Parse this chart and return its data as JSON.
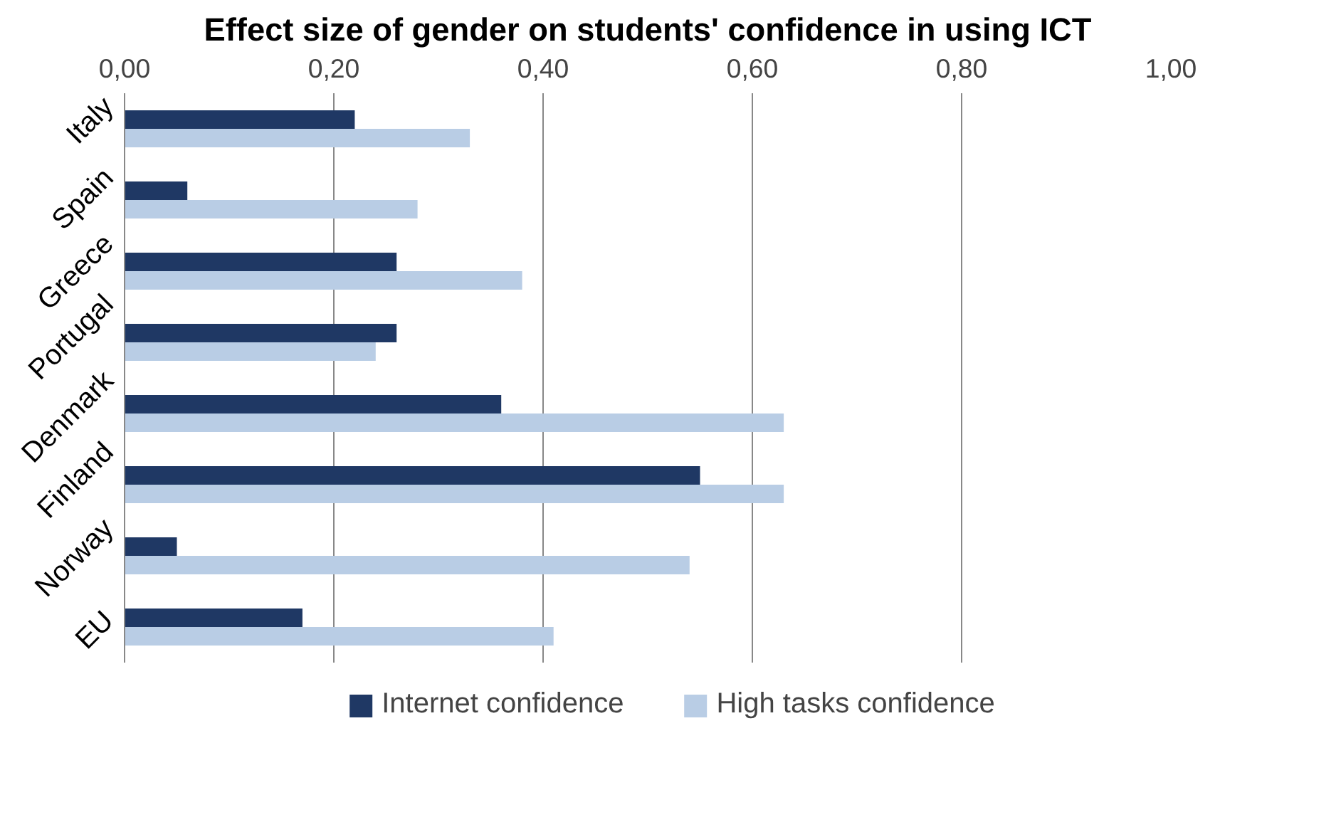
{
  "chart_data": {
    "type": "bar",
    "orientation": "horizontal",
    "title": "Effect size of gender on students' confidence in using ICT",
    "categories": [
      "Italy",
      "Spain",
      "Greece",
      "Portugal",
      "Denmark",
      "Finland",
      "Norway",
      "EU"
    ],
    "series": [
      {
        "name": "Internet confidence",
        "color": "#1f3864",
        "values": [
          0.22,
          0.06,
          0.26,
          0.26,
          0.36,
          0.55,
          0.05,
          0.17
        ]
      },
      {
        "name": "High tasks confidence",
        "color": "#b9cde5",
        "values": [
          0.33,
          0.28,
          0.38,
          0.24,
          0.63,
          0.63,
          0.54,
          0.41
        ]
      }
    ],
    "xlim": [
      0,
      1
    ],
    "xticks": [
      {
        "value": 0,
        "label": "0,00"
      },
      {
        "value": 0.2,
        "label": "0,20"
      },
      {
        "value": 0.4,
        "label": "0,40"
      },
      {
        "value": 0.6,
        "label": "0,60"
      },
      {
        "value": 0.8,
        "label": "0,80"
      },
      {
        "value": 1,
        "label": "1,00"
      }
    ],
    "grid": "x",
    "legend": "bottom"
  }
}
